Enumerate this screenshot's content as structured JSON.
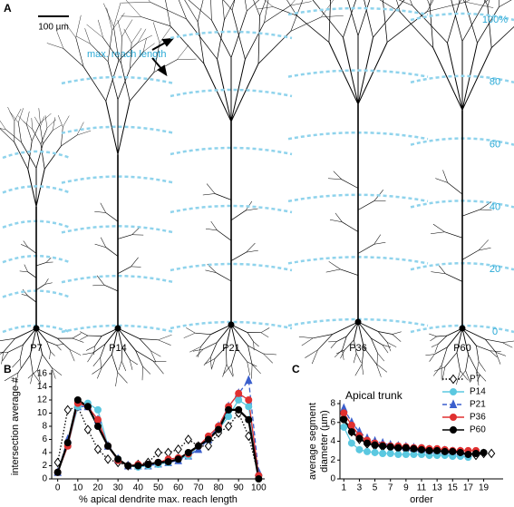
{
  "figure": {
    "panel_a_label": "A",
    "scale_bar": "100 µm",
    "reach_label": "max. reach length",
    "scale_labels": [
      "0",
      "20",
      "40",
      "60",
      "80",
      "100%"
    ],
    "neurons": [
      "P7",
      "P14",
      "P21",
      "P36",
      "P60"
    ]
  },
  "chart_data": [
    {
      "type": "line",
      "panel_label": "B",
      "x_label": "% apical dendrite max. reach length",
      "y_label": "intersection average #",
      "x": [
        0,
        5,
        10,
        15,
        20,
        25,
        30,
        35,
        40,
        45,
        50,
        55,
        60,
        65,
        70,
        75,
        80,
        85,
        90,
        95,
        100
      ],
      "xlim": [
        -3,
        103
      ],
      "xticks": [
        0,
        10,
        20,
        30,
        40,
        50,
        60,
        70,
        80,
        90,
        100
      ],
      "ylim": [
        0,
        16
      ],
      "yticks": [
        0,
        2,
        4,
        6,
        8,
        10,
        12,
        14,
        16
      ],
      "series": [
        {
          "color": "#000000",
          "marker": "diamond",
          "fill": "#ffffff",
          "linestyle": "dotted",
          "values": [
            2.5,
            10.5,
            11,
            7.5,
            4.5,
            3,
            2.5,
            2,
            2.2,
            2.5,
            4,
            4,
            4.5,
            6,
            5,
            5,
            7,
            8,
            10,
            6.5,
            0.5
          ]
        },
        {
          "color": "#5bc8e0",
          "marker": "circle",
          "fill": "#5bc8e0",
          "linestyle": "solid",
          "values": [
            1,
            5,
            11,
            11.5,
            10.5,
            5,
            3,
            2,
            1.8,
            2,
            2.2,
            2.5,
            3,
            3.5,
            5,
            6,
            7.5,
            9.5,
            12,
            11,
            0.5
          ]
        },
        {
          "color": "#3a5fcd",
          "marker": "triangle",
          "fill": "#3a5fcd",
          "linestyle": "dashed",
          "values": [
            1,
            6,
            11,
            11,
            9,
            5,
            3,
            2,
            2,
            2,
            2.3,
            2.5,
            2.8,
            3.5,
            4.5,
            6,
            8,
            11,
            13,
            15,
            1
          ]
        },
        {
          "color": "#e03030",
          "marker": "circle",
          "fill": "#e03030",
          "linestyle": "solid",
          "values": [
            1,
            5,
            11.5,
            11,
            9,
            5,
            2.8,
            2,
            2.2,
            2.2,
            2.5,
            3,
            3.2,
            3.8,
            5,
            6.5,
            8,
            11,
            13,
            12,
            0.5
          ]
        },
        {
          "color": "#000000",
          "marker": "circle",
          "fill": "#000000",
          "linestyle": "solid",
          "values": [
            1,
            5.5,
            12,
            11,
            8,
            5,
            3,
            2,
            2,
            2.2,
            2.5,
            2.6,
            3,
            4,
            5,
            6,
            7.5,
            10.5,
            10.5,
            9,
            0
          ]
        }
      ]
    },
    {
      "type": "line",
      "panel_label": "C",
      "title": "Apical trunk",
      "x_label": "order",
      "y_label": [
        "average segment",
        "diameter (µm)"
      ],
      "x": [
        1,
        2,
        3,
        4,
        5,
        6,
        7,
        8,
        9,
        10,
        11,
        12,
        13,
        14,
        15,
        16,
        17,
        18,
        19,
        20
      ],
      "xlim": [
        0.5,
        21.5
      ],
      "xticks": [
        1,
        3,
        5,
        7,
        9,
        11,
        13,
        15,
        17,
        19
      ],
      "ylim": [
        0,
        8
      ],
      "yticks": [
        0,
        2,
        4,
        6,
        8
      ],
      "legend": "upper right",
      "series": [
        {
          "name": "P7",
          "color": "#000000",
          "marker": "diamond",
          "fill": "#ffffff",
          "linestyle": "dotted",
          "values": [
            6.5,
            5,
            4.2,
            3.7,
            3.5,
            3.4,
            3.3,
            3.2,
            3.1,
            3.0,
            3.0,
            2.9,
            2.9,
            2.8,
            2.8,
            2.7,
            2.6,
            2.5,
            2.7,
            2.7
          ]
        },
        {
          "name": "P14",
          "color": "#5bc8e0",
          "marker": "circle",
          "fill": "#5bc8e0",
          "linestyle": "solid",
          "values": [
            5.5,
            3.8,
            3.1,
            2.9,
            2.8,
            2.7,
            2.7,
            2.6,
            2.6,
            2.6,
            2.6,
            2.5,
            2.5,
            2.5,
            2.4,
            2.4,
            2.3,
            null,
            null,
            null
          ]
        },
        {
          "name": "P21",
          "color": "#3a5fcd",
          "marker": "triangle",
          "fill": "#3a5fcd",
          "linestyle": "dashed",
          "values": [
            7.5,
            6,
            5,
            4.3,
            4,
            3.8,
            3.6,
            3.5,
            3.4,
            3.3,
            3.2,
            3.1,
            3.0,
            3.0,
            2.9,
            2.9,
            2.7,
            null,
            null,
            null
          ]
        },
        {
          "name": "P36",
          "color": "#e03030",
          "marker": "circle",
          "fill": "#e03030",
          "linestyle": "solid",
          "values": [
            7,
            5.7,
            4.6,
            4.1,
            3.8,
            3.6,
            3.5,
            3.5,
            3.4,
            3.3,
            3.3,
            3.2,
            3.2,
            3.1,
            3.0,
            3.0,
            3.0,
            3.0,
            null,
            null
          ]
        },
        {
          "name": "P60",
          "color": "#000000",
          "marker": "circle",
          "fill": "#000000",
          "linestyle": "solid",
          "values": [
            6.3,
            5,
            4.3,
            3.8,
            3.6,
            3.5,
            3.4,
            3.3,
            3.3,
            3.2,
            3.1,
            3.0,
            3.0,
            2.9,
            2.9,
            2.8,
            2.6,
            2.7,
            2.8,
            null
          ]
        }
      ]
    }
  ]
}
